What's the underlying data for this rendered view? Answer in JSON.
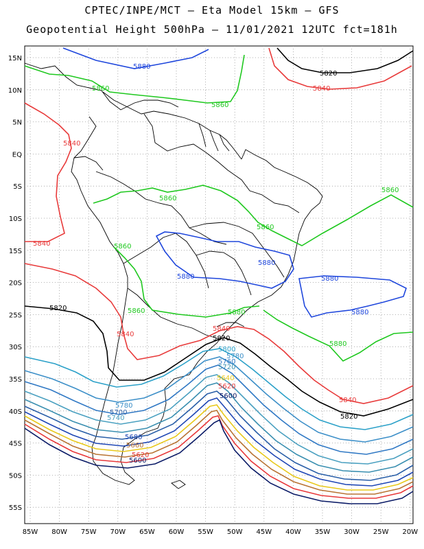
{
  "header": {
    "line1": "CPTEC/INPE/MCT –  Eta Model 15km – GFS",
    "line2": "Geopotential Height 500hPa – 11/01/2021 12UTC fct=181h"
  },
  "axes": {
    "lat_labels": [
      "15N",
      "10N",
      "5N",
      "EQ",
      "5S",
      "10S",
      "15S",
      "20S",
      "25S",
      "30S",
      "35S",
      "40S",
      "45S",
      "50S",
      "55S"
    ],
    "lon_labels": [
      "85W",
      "80W",
      "75W",
      "70W",
      "65W",
      "60W",
      "55W",
      "50W",
      "45W",
      "40W",
      "35W",
      "30W",
      "25W",
      "20W"
    ]
  },
  "colors": {
    "c5600": "#0a1a66",
    "c5620": "#e8383a",
    "c5640": "#b87333",
    "c5660": "#e8c81a",
    "c5680": "#1e46b4",
    "c5700": "#2a5fa8",
    "c5720": "#3a8fb0",
    "c5740": "#4aa0c0",
    "c5760": "#2f78c4",
    "c5780": "#3c8fc8",
    "c5800": "#2aa0c8",
    "c5820": "#000000",
    "c5840": "#e83a3a",
    "c5860": "#1ec81e",
    "c5880": "#1e46dc",
    "coast": "#000000",
    "grid": "#999999"
  },
  "contour_labels": {
    "l5880_a": "5880",
    "l5880_b": "5880",
    "l5880_c": "5880",
    "l5880_d": "5880",
    "l5880_e": "5880",
    "l5880_f": "5880",
    "l5860_a": "5860",
    "l5860_b": "5860",
    "l5860_c": "5860",
    "l5860_d": "5860",
    "l5860_e": "5860",
    "l5860_f": "5860",
    "l5860_g": "5860",
    "l5840_a": "5840",
    "l5840_b": "5840",
    "l5840_c": "5840",
    "l5840_d": "5840",
    "l5840_e": "5840",
    "l5840_f": "5840",
    "l5820_a": "5820",
    "l5820_b": "5820",
    "l5820_c": "5820",
    "l5820_d": "5820",
    "l5800": "5800",
    "l5780_a": "5780",
    "l5780_b": "5780",
    "l5760": "5760",
    "l5740": "5740",
    "l5720": "5720",
    "l5700": "5700",
    "l5680_a": "5680",
    "l5660": "5660",
    "l5640": "5640",
    "l5620_a": "5620",
    "l5620_b": "5620",
    "l5600_a": "5600",
    "l5600_b": "5600"
  }
}
